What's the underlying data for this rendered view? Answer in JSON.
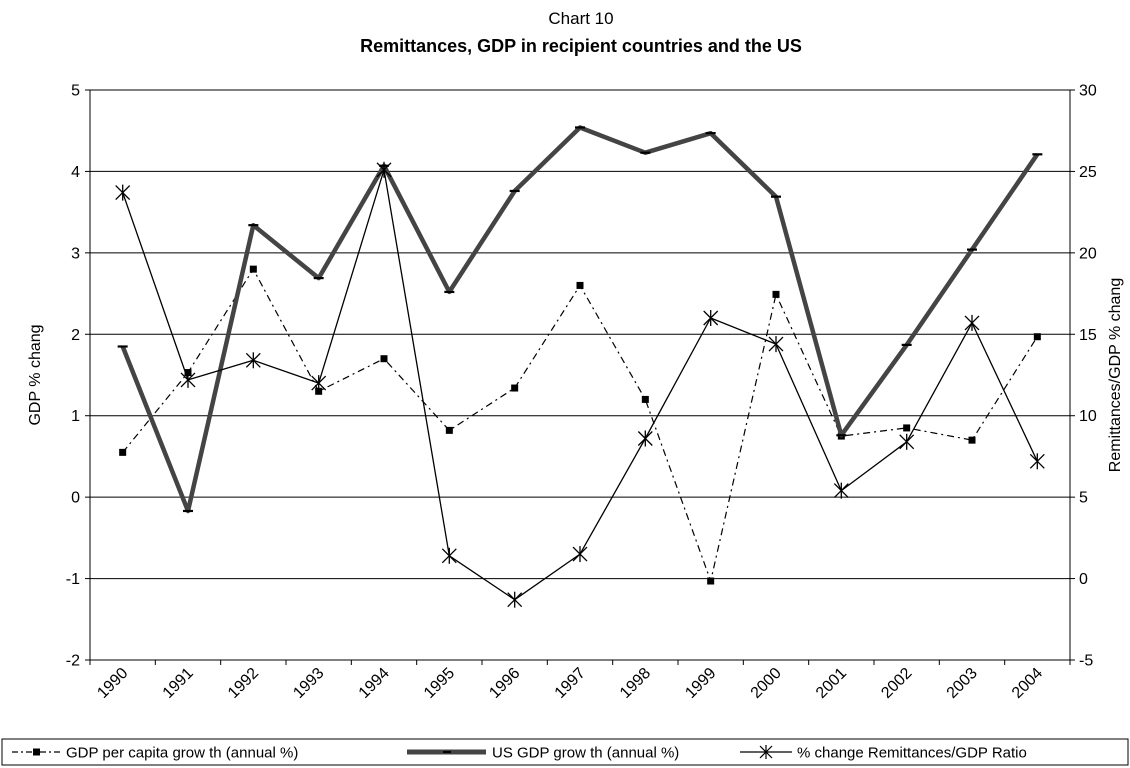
{
  "chart_data": {
    "type": "line",
    "supertitle": "Chart 10",
    "title": "Remittances, GDP in recipient countries and the US",
    "ylabel": "GDP % chang",
    "y2label": "Remittances/GDP % chang",
    "categories": [
      "1990",
      "1991",
      "1992",
      "1993",
      "1994",
      "1995",
      "1996",
      "1997",
      "1998",
      "1999",
      "2000",
      "2001",
      "2002",
      "2003",
      "2004"
    ],
    "y_ticks": [
      5,
      4,
      3,
      2,
      1,
      0,
      -1,
      -2
    ],
    "y2_ticks": [
      30,
      25,
      20,
      15,
      10,
      5,
      0,
      -5
    ],
    "ylim": [
      -2,
      5
    ],
    "y2lim": [
      -5,
      30
    ],
    "grid": true,
    "legend_position": "bottom",
    "series": [
      {
        "name": "GDP per capita grow th (annual %)",
        "axis": "left",
        "style": "dash-dot",
        "marker": "square",
        "color": "#000000",
        "values": [
          0.55,
          1.53,
          2.8,
          1.3,
          1.7,
          0.82,
          1.34,
          2.6,
          1.2,
          -1.03,
          2.49,
          0.75,
          0.85,
          0.7,
          1.97
        ]
      },
      {
        "name": "US GDP grow th (annual %)",
        "axis": "left",
        "style": "thick-solid",
        "marker": "dash",
        "color": "#444444",
        "values": [
          1.85,
          -0.17,
          3.34,
          2.69,
          4.07,
          2.52,
          3.76,
          4.54,
          4.23,
          4.47,
          3.69,
          0.76,
          1.87,
          3.04,
          4.21
        ]
      },
      {
        "name": "% change Remittances/GDP Ratio",
        "axis": "right",
        "style": "thin-solid",
        "marker": "asterisk",
        "color": "#000000",
        "values": [
          23.7,
          12.2,
          13.4,
          12.0,
          25.1,
          1.4,
          -1.3,
          1.5,
          8.6,
          16.0,
          14.4,
          5.4,
          8.4,
          15.7,
          7.2
        ]
      }
    ]
  }
}
